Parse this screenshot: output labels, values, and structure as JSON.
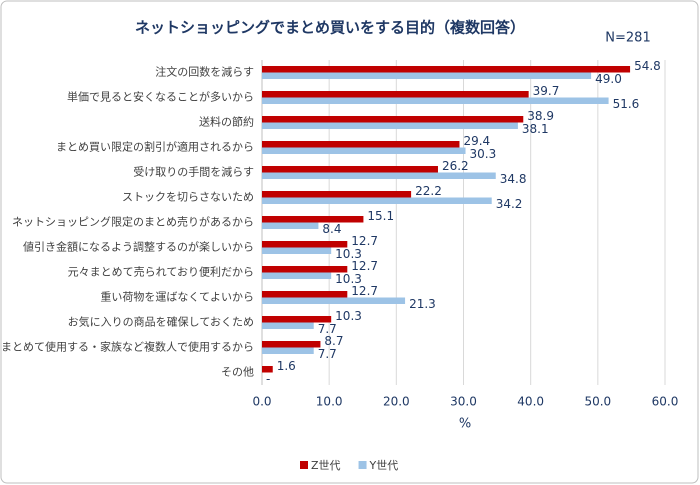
{
  "chart_data": {
    "type": "bar",
    "orientation": "horizontal",
    "title": "ネットショッピングでまとめ買いをする目的（複数回答）",
    "annotation": "N=281",
    "x_label": "%",
    "categories": [
      "注文の回数を減らす",
      "単価で見ると安くなることが多いから",
      "送料の節約",
      "まとめ買い限定の割引が適用されるから",
      "受け取りの手間を減らす",
      "ストックを切らさないため",
      "ネットショッピング限定のまとめ売りがあるから",
      "値引き金額になるよう調整するのが楽しいから",
      "元々まとめて売られており便利だから",
      "重い荷物を運ばなくてよいから",
      "お気に入りの商品を確保しておくため",
      "まとめて使用する・家族など複数人で使用するから",
      "その他"
    ],
    "series": [
      {
        "name": "Z世代",
        "color": "#c00000",
        "values": [
          54.8,
          39.7,
          38.9,
          29.4,
          26.2,
          22.2,
          15.1,
          12.7,
          12.7,
          12.7,
          10.3,
          8.7,
          1.6
        ]
      },
      {
        "name": "Y世代",
        "color": "#9dc3e6",
        "values": [
          49,
          51.6,
          38.1,
          30.3,
          34.8,
          34.2,
          8.4,
          10.3,
          10.3,
          21.3,
          7.7,
          7.7,
          null
        ],
        "value_labels": [
          "49.0",
          "51.6",
          "38.1",
          "30.3",
          "34.8",
          "34.2",
          "8.4",
          "10.3",
          "10.3",
          "21.3",
          "7.7",
          "7.7",
          "-"
        ]
      }
    ],
    "xlim": [
      0,
      60
    ],
    "xticks": [
      {
        "value": 0,
        "label": "0.0"
      },
      {
        "value": 10,
        "label": "10.0"
      },
      {
        "value": 20,
        "label": "20.0"
      },
      {
        "value": 30,
        "label": "30.0"
      },
      {
        "value": 40,
        "label": "40.0"
      },
      {
        "value": 50,
        "label": "50.0"
      },
      {
        "value": 60,
        "label": "60.0"
      }
    ],
    "grid": true,
    "legend": "bottom"
  }
}
